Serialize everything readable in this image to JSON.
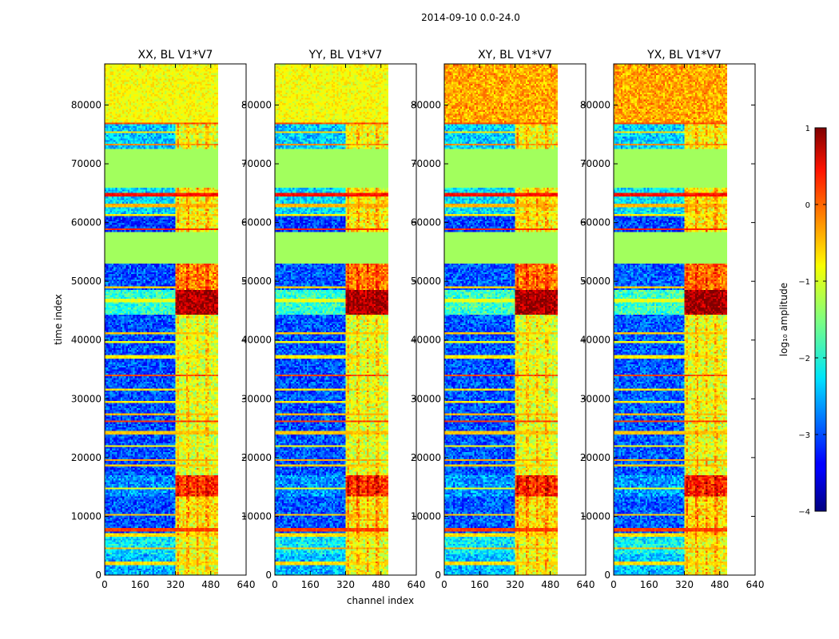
{
  "chart_data": {
    "type": "heatmap",
    "suptitle": "2014-09-10 0.0-24.0",
    "xlabel": "channel index",
    "ylabel": "time index",
    "xlim": [
      0,
      640
    ],
    "ylim": [
      0,
      87000
    ],
    "xticks": [
      0,
      160,
      320,
      480,
      640
    ],
    "yticks": [
      0,
      10000,
      20000,
      30000,
      40000,
      50000,
      60000,
      70000,
      80000
    ],
    "data_channel_extent": [
      0,
      512
    ],
    "panels": [
      {
        "title": "XX, BL V1*V7",
        "polarization": "XX"
      },
      {
        "title": "YY, BL V1*V7",
        "polarization": "YY"
      },
      {
        "title": "XY, BL V1*V7",
        "polarization": "XY"
      },
      {
        "title": "YX, BL V1*V7",
        "polarization": "YX"
      }
    ],
    "colorbar": {
      "label": "log₁₀ amplitude",
      "vmin": -4,
      "vmax": 1,
      "ticks": [
        -4,
        -3,
        -2,
        -1,
        0,
        1
      ],
      "tick_labels": [
        "−4",
        "−3",
        "−2",
        "−1",
        "0",
        "1"
      ],
      "colormap": "jet"
    },
    "bands": [
      {
        "t0": 0,
        "t1": 3500,
        "base": -2.5,
        "hot": -1.0
      },
      {
        "t0": 3500,
        "t1": 7000,
        "base": -2.2,
        "hot": -1.0
      },
      {
        "t0": 7000,
        "t1": 13500,
        "base": -3.0,
        "hot": -0.8
      },
      {
        "t0": 13500,
        "t1": 17000,
        "base": -2.7,
        "hot": 0.1
      },
      {
        "t0": 17000,
        "t1": 44500,
        "base": -3.0,
        "hot": -1.1
      },
      {
        "t0": 44500,
        "t1": 48500,
        "base": -1.9,
        "hot": 0.75
      },
      {
        "t0": 48500,
        "t1": 53000,
        "base": -3.0,
        "hot": -0.3
      },
      {
        "t0": 53000,
        "t1": 58500,
        "base": -1.35,
        "hot": -1.35
      },
      {
        "t0": 58500,
        "t1": 61500,
        "base": -3.1,
        "hot": -0.9
      },
      {
        "t0": 61500,
        "t1": 66000,
        "base": -2.3,
        "hot": -0.9
      },
      {
        "t0": 66000,
        "t1": 72500,
        "base": -1.35,
        "hot": -1.35
      },
      {
        "t0": 72500,
        "t1": 77000,
        "base": -2.4,
        "hot": -1.0
      },
      {
        "t0": 77000,
        "t1": 87000,
        "base": -0.9,
        "hot": -0.9
      }
    ],
    "rfi_rows": [
      {
        "t": 2100,
        "v": -0.7
      },
      {
        "t": 4700,
        "v": -0.5
      },
      {
        "t": 6900,
        "v": -0.7
      },
      {
        "t": 7800,
        "v": 0.1
      },
      {
        "t": 10400,
        "v": -0.6
      },
      {
        "t": 14900,
        "v": -0.9
      },
      {
        "t": 18800,
        "v": -0.6
      },
      {
        "t": 19600,
        "v": -0.4
      },
      {
        "t": 22100,
        "v": -0.9
      },
      {
        "t": 24300,
        "v": -0.6
      },
      {
        "t": 26200,
        "v": 0.1
      },
      {
        "t": 27500,
        "v": -0.5
      },
      {
        "t": 29600,
        "v": -0.8
      },
      {
        "t": 31700,
        "v": -0.7
      },
      {
        "t": 34000,
        "v": 0.0
      },
      {
        "t": 37200,
        "v": -0.8
      },
      {
        "t": 39800,
        "v": -0.9
      },
      {
        "t": 41300,
        "v": -0.6
      },
      {
        "t": 46800,
        "v": -1.0
      },
      {
        "t": 49000,
        "v": -0.6
      },
      {
        "t": 58900,
        "v": 0.2
      },
      {
        "t": 61400,
        "v": -0.8
      },
      {
        "t": 63000,
        "v": -0.5
      },
      {
        "t": 64800,
        "v": 0.3
      },
      {
        "t": 73300,
        "v": -0.3
      },
      {
        "t": 75500,
        "v": -0.7
      },
      {
        "t": 77100,
        "v": 0.0
      },
      {
        "t": 80200,
        "v": -0.5
      },
      {
        "t": 83900,
        "v": -0.4
      }
    ],
    "hot_channels": [
      {
        "c0": 320,
        "c1": 510
      },
      {
        "c0": 328,
        "c1": 340
      },
      {
        "c0": 372,
        "c1": 384
      },
      {
        "c0": 416,
        "c1": 428
      },
      {
        "c0": 460,
        "c1": 472
      }
    ],
    "masked_channels": [
      512,
      640
    ]
  }
}
